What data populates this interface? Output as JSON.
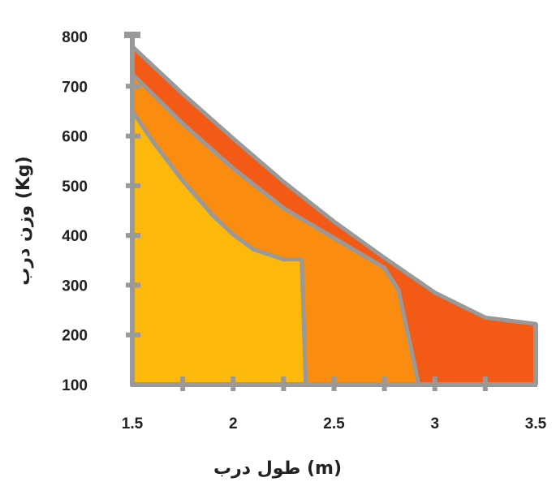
{
  "chart_data": {
    "type": "area",
    "xlabel": "طول درب (m)",
    "ylabel": "وزن درب (Kg)",
    "xlim": [
      1.5,
      3.5
    ],
    "ylim": [
      100,
      800
    ],
    "x_ticks": [
      "1.5",
      "2",
      "2.5",
      "3",
      "3.5"
    ],
    "y_ticks": [
      "100",
      "200",
      "300",
      "400",
      "500",
      "600",
      "700",
      "800"
    ],
    "grid": false,
    "colors": {
      "outer": "#F25A16",
      "middle": "#FA8C10",
      "inner": "#FCB90C",
      "outline": "#999999"
    },
    "series": [
      {
        "key": "outer",
        "points": [
          [
            1.5,
            780
          ],
          [
            1.75,
            685
          ],
          [
            2.0,
            595
          ],
          [
            2.25,
            508
          ],
          [
            2.5,
            428
          ],
          [
            2.75,
            355
          ],
          [
            3.0,
            285
          ],
          [
            3.25,
            235
          ],
          [
            3.5,
            222
          ],
          [
            3.5,
            100
          ]
        ]
      },
      {
        "key": "middle",
        "points": [
          [
            1.5,
            725
          ],
          [
            1.75,
            625
          ],
          [
            2.0,
            535
          ],
          [
            2.25,
            455
          ],
          [
            2.5,
            395
          ],
          [
            2.75,
            335
          ],
          [
            2.82,
            290
          ],
          [
            2.92,
            100
          ]
        ]
      },
      {
        "key": "inner",
        "points": [
          [
            1.5,
            650
          ],
          [
            1.6,
            590
          ],
          [
            1.75,
            510
          ],
          [
            1.9,
            440
          ],
          [
            2.0,
            402
          ],
          [
            2.1,
            372
          ],
          [
            2.25,
            352
          ],
          [
            2.34,
            352
          ],
          [
            2.36,
            100
          ]
        ]
      }
    ]
  }
}
